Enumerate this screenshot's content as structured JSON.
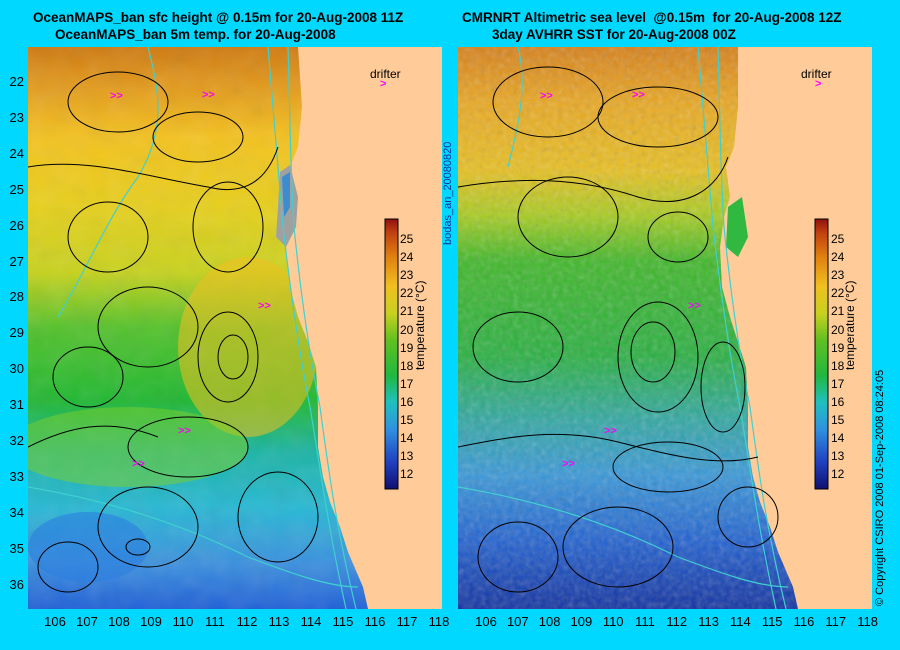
{
  "left_panel": {
    "title_line1": "OceanMAPS_ban sfc height @ 0.15m for 20-Aug-2008 11Z",
    "title_line2": "OceanMAPS_ban 5m temp. for 20-Aug-2008"
  },
  "right_panel": {
    "title_line1": "CMRNRT Altimetric sea level  @0.15m  for 20-Aug-2008 12Z",
    "title_line2": "3day AVHRR SST for 20-Aug-2008 00Z"
  },
  "drifter_label": "drifter",
  "colorbar": {
    "title": "temperature (°C)",
    "ticks": [
      "25",
      "24",
      "23",
      "22",
      "21",
      "20",
      "19",
      "18",
      "17",
      "16",
      "15",
      "14",
      "13",
      "12"
    ]
  },
  "lat_labels": [
    "22",
    "23",
    "24",
    "25",
    "26",
    "27",
    "28",
    "29",
    "30",
    "31",
    "32",
    "33",
    "34",
    "35",
    "36"
  ],
  "lon_labels": [
    "106",
    "107",
    "108",
    "109",
    "110",
    "111",
    "112",
    "113",
    "114",
    "115",
    "116",
    "117",
    "118"
  ],
  "center_vertical_text": "bodas_an_20080820",
  "right_vertical_text": "© Copyright CSIRO 2008   01-Sep-2008 08:24:05",
  "colors": {
    "background": "#00d8ff",
    "land": "#ffcc99",
    "contour": "#000000",
    "bathymetry": "#40d0d0",
    "drifter": "#ff00ff"
  },
  "map_data": {
    "lat_range": [
      21.4,
      36.6
    ],
    "lon_range": [
      105.6,
      118.4
    ],
    "temp_range": [
      12,
      26
    ]
  }
}
